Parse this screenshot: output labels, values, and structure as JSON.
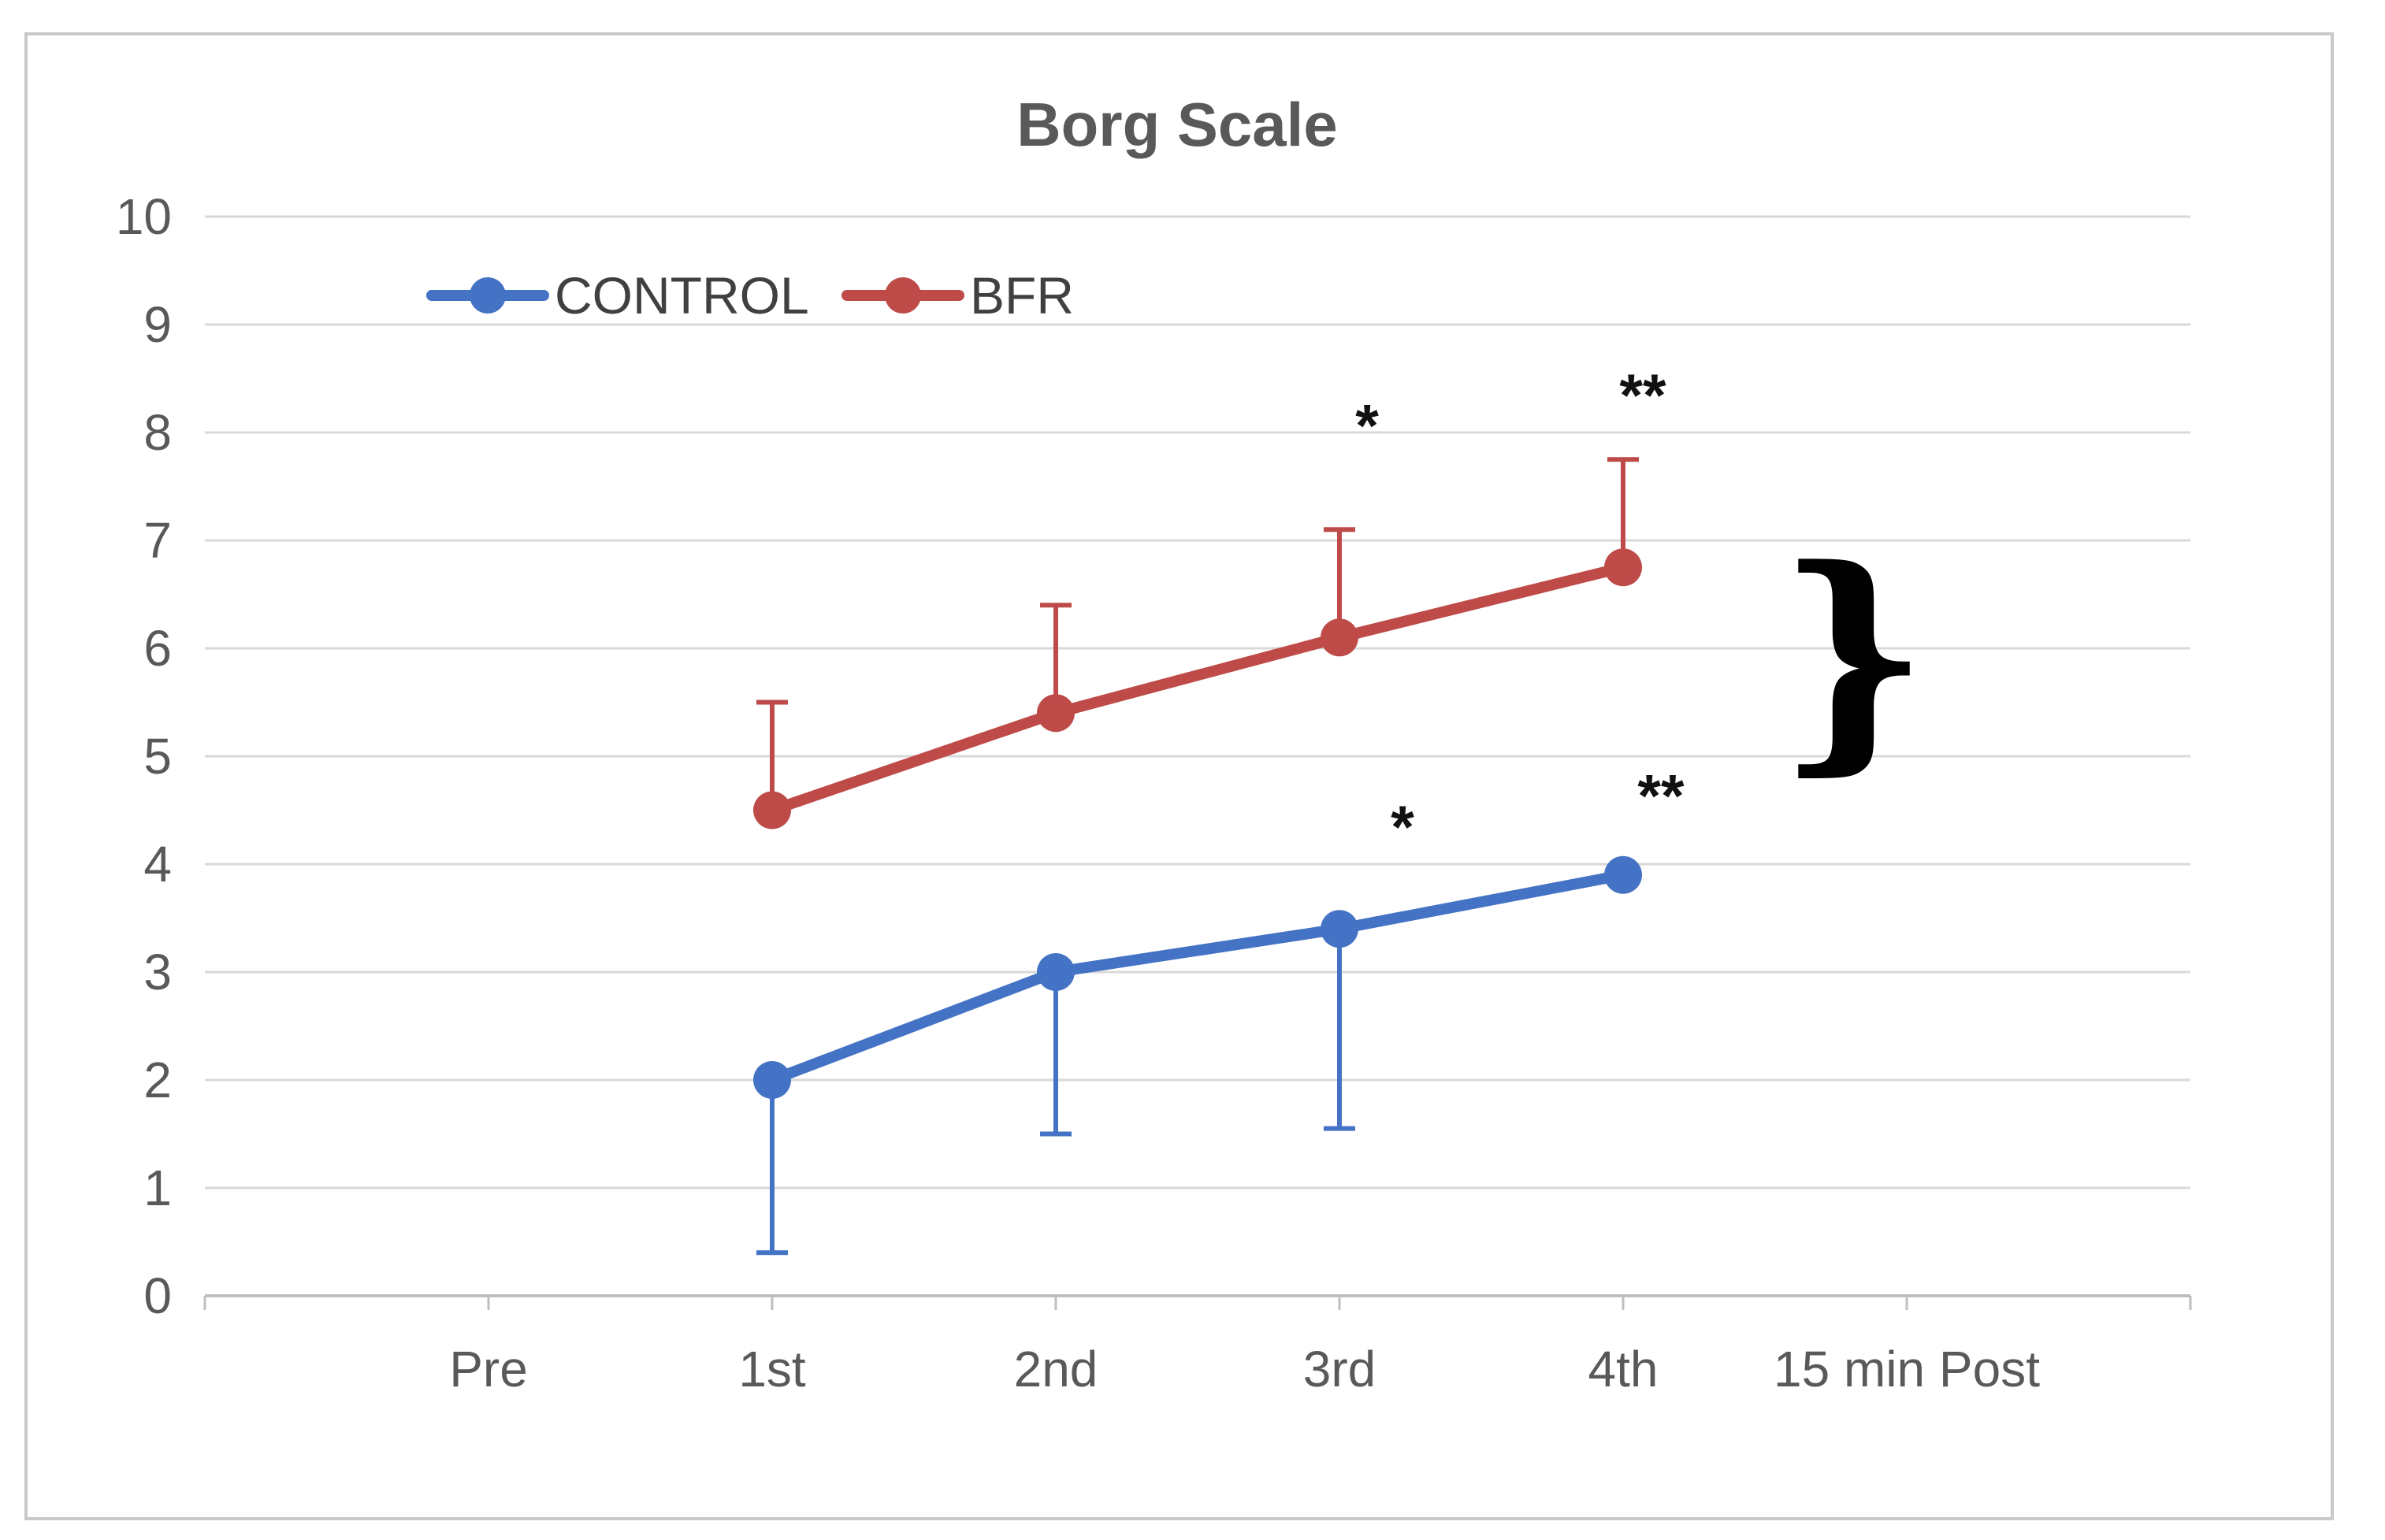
{
  "chart_data": {
    "type": "line",
    "title": "Borg Scale",
    "categories": [
      "Pre",
      "1st",
      "2nd",
      "3rd",
      "4th",
      "15 min Post"
    ],
    "y_axis": {
      "min": 0,
      "max": 10,
      "step": 1,
      "tick_labels": [
        "0",
        "1",
        "2",
        "3",
        "4",
        "5",
        "6",
        "7",
        "8",
        "9",
        "10"
      ]
    },
    "grid": true,
    "legend_position": "top-left-inside",
    "series": [
      {
        "name": "CONTROL",
        "color": "#4472C4",
        "marker": "circle",
        "points": [
          {
            "category": "1st",
            "value": 2.0
          },
          {
            "category": "2nd",
            "value": 3.0
          },
          {
            "category": "3rd",
            "value": 3.4
          },
          {
            "category": "4th",
            "value": 3.9
          }
        ],
        "error_bars": {
          "direction": "minus",
          "whisker_ends": [
            0.4,
            1.5,
            1.55,
            null
          ]
        }
      },
      {
        "name": "BFR",
        "color": "#BE4B48",
        "marker": "circle",
        "points": [
          {
            "category": "1st",
            "value": 4.5
          },
          {
            "category": "2nd",
            "value": 5.4
          },
          {
            "category": "3rd",
            "value": 6.1
          },
          {
            "category": "4th",
            "value": 6.75
          }
        ],
        "error_bars": {
          "direction": "plus",
          "whisker_ends": [
            5.5,
            6.4,
            7.1,
            7.75
          ]
        }
      }
    ],
    "annotations": [
      {
        "text": "*",
        "category": "3rd",
        "dx": 35,
        "y_value": 8.15,
        "applies_to": "BFR"
      },
      {
        "text": "**",
        "category": "4th",
        "dx": 25,
        "y_value": 8.43,
        "applies_to": "BFR"
      },
      {
        "text": "*",
        "category": "3rd",
        "dx": 80,
        "y_value": 4.43,
        "applies_to": "CONTROL"
      },
      {
        "text": "**",
        "category": "4th",
        "dx": 48,
        "y_value": 4.72,
        "applies_to": "CONTROL"
      },
      {
        "text": "}",
        "type": "brace",
        "category": "4th",
        "dx": 292,
        "y_from": 4.78,
        "y_to": 6.72
      }
    ],
    "colors": {
      "gridline": "#D9D9D9",
      "axis_line": "#BFBFBF",
      "tick_mark": "#BFBFBF",
      "tick_label": "#595959",
      "title": "#595959",
      "legend_label": "#404040",
      "annotation": "#111111",
      "figure_border": "#C9C9C9",
      "background": "#FFFFFF"
    }
  }
}
